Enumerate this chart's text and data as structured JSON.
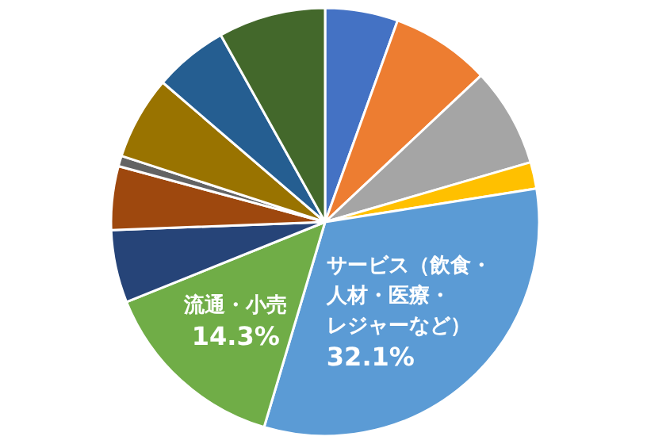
{
  "chart_data": {
    "type": "pie",
    "categories": [
      null,
      null,
      null,
      null,
      "サービス（飲食・人材・医療・レジャーなど）",
      "流通・小売",
      null,
      null,
      null,
      null,
      null,
      null
    ],
    "values": [
      5.5,
      7.5,
      7.5,
      2,
      32.1,
      14.3,
      5.5,
      4.8,
      0.8,
      6.3,
      5.6,
      8.1
    ],
    "value_labels": [
      null,
      null,
      null,
      null,
      "32.1%",
      "14.3%",
      null,
      null,
      null,
      null,
      null,
      null
    ],
    "colors": [
      "#4472c4",
      "#ed7d31",
      "#a5a5a5",
      "#ffc000",
      "#5b9bd5",
      "#70ad47",
      "#264478",
      "#9e480e",
      "#636363",
      "#997300",
      "#255e91",
      "#43682b"
    ]
  }
}
